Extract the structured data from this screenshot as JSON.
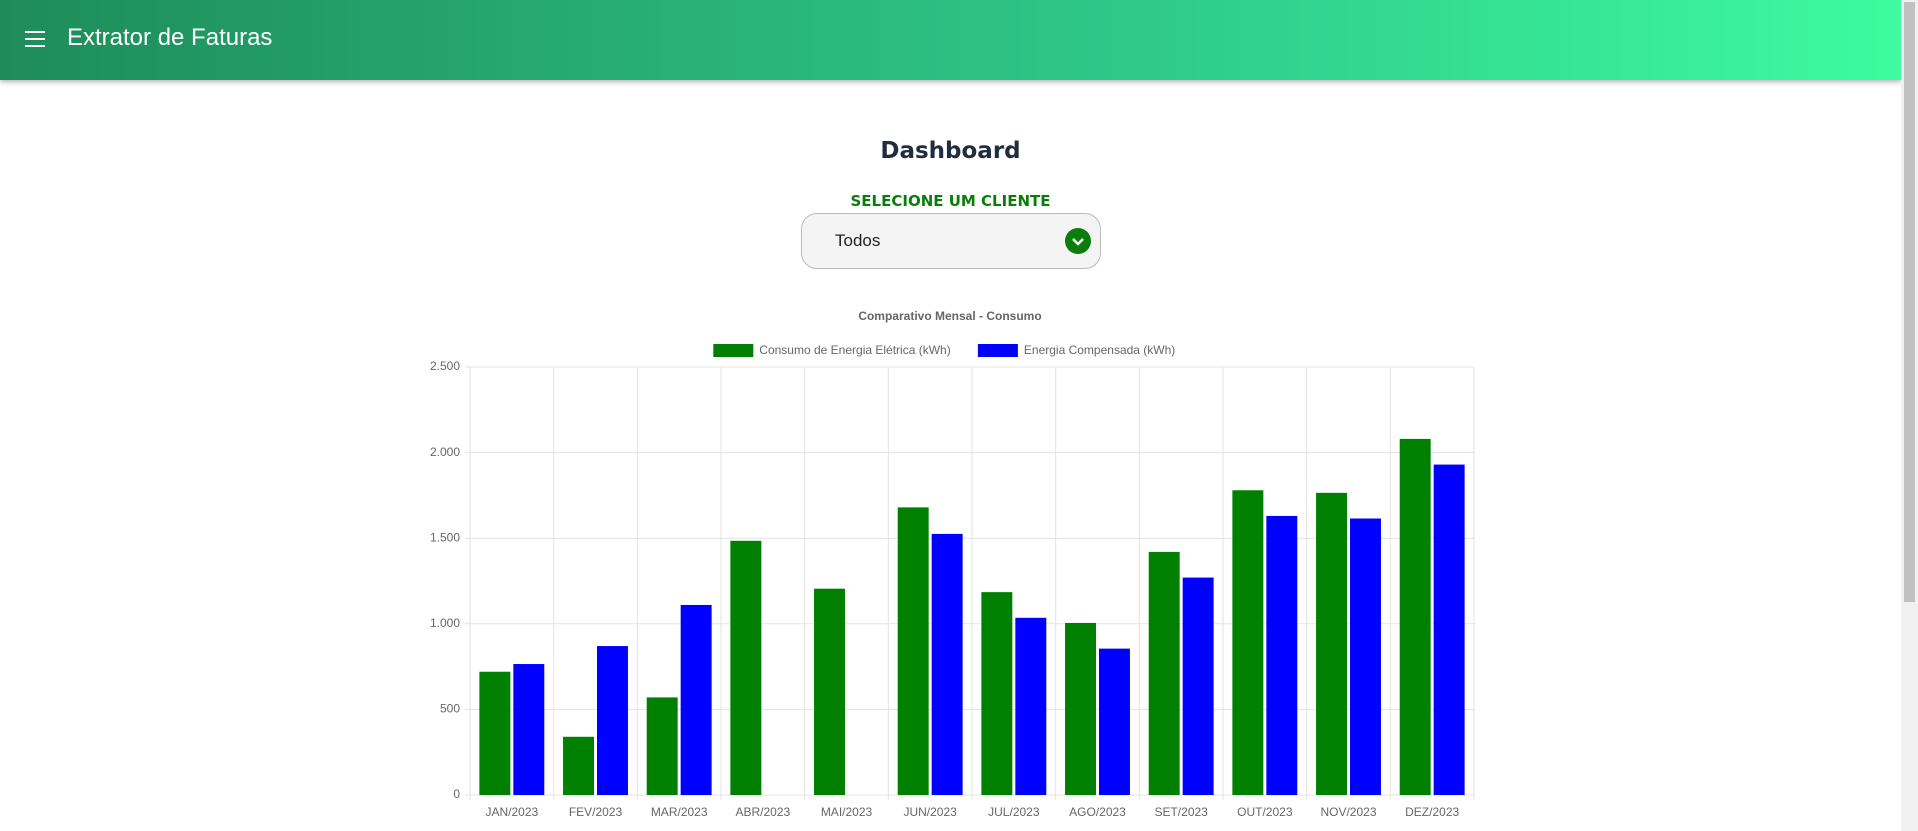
{
  "header": {
    "title": "Extrator de Faturas"
  },
  "page_title": "Dashboard",
  "client_select": {
    "label": "SELECIONE UM CLIENTE",
    "value": "Todos"
  },
  "chart_data": {
    "type": "bar",
    "title": "Comparativo Mensal - Consumo",
    "categories": [
      "JAN/2023",
      "FEV/2023",
      "MAR/2023",
      "ABR/2023",
      "MAI/2023",
      "JUN/2023",
      "JUL/2023",
      "AGO/2023",
      "SET/2023",
      "OUT/2023",
      "NOV/2023",
      "DEZ/2023"
    ],
    "series": [
      {
        "name": "Consumo de Energia Elétrica (kWh)",
        "color": "#008000",
        "values": [
          720,
          340,
          570,
          1485,
          1205,
          1680,
          1185,
          1005,
          1420,
          1780,
          1765,
          2080
        ]
      },
      {
        "name": "Energia Compensada (kWh)",
        "color": "#0000ff",
        "values": [
          765,
          870,
          1110,
          0,
          0,
          1525,
          1035,
          855,
          1270,
          1630,
          1615,
          1930
        ]
      }
    ],
    "ylim": [
      0,
      2500
    ],
    "yticks": [
      0,
      500,
      {
        "value": 1000,
        "label": "1.000"
      },
      {
        "value": 1500,
        "label": "1.500"
      },
      {
        "value": 2000,
        "label": "2.000"
      },
      {
        "value": 2500,
        "label": "2.500"
      }
    ],
    "grid": true,
    "legend": "top"
  }
}
